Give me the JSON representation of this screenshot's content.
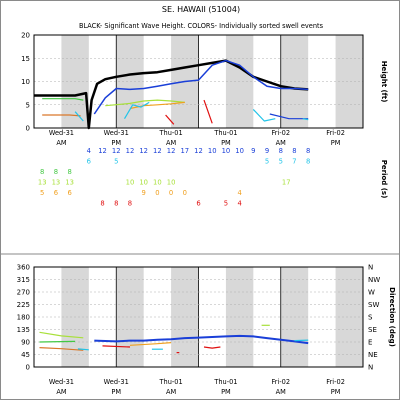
{
  "title": "SE. HAWAII (51004)",
  "subtitle": "BLACK- Significant Wave Height.  COLORS- Individually sorted swell events",
  "colors": {
    "black": "#000000",
    "blue": "#1a3fd8",
    "cyan": "#22c4e8",
    "green": "#43c843",
    "yellowgreen": "#a8e03a",
    "orange": "#f0a020",
    "darkorange": "#d9782a",
    "red": "#e01010",
    "shade": "#d8d8d8"
  },
  "time_ticks": [
    {
      "day": "Wed-31",
      "half": "AM"
    },
    {
      "day": "Wed-31",
      "half": "PM"
    },
    {
      "day": "Thu-01",
      "half": "AM"
    },
    {
      "day": "Thu-01",
      "half": "PM"
    },
    {
      "day": "Fri-02",
      "half": "AM"
    },
    {
      "day": "Fri-02",
      "half": "PM"
    }
  ],
  "chart_data": [
    {
      "type": "line",
      "id": "height",
      "ylabel": "Height (ft)",
      "ylim": [
        0,
        20
      ],
      "yticks": [
        0,
        5,
        10,
        15,
        20
      ],
      "xlim": [
        0,
        12
      ],
      "grid": true,
      "series": [
        {
          "color": "black",
          "width": 2.5,
          "x": [
            0,
            1.5,
            1.9,
            2.0,
            2.1,
            2.3,
            2.6,
            3.0,
            3.5,
            4.0,
            4.5,
            5.0,
            5.5,
            6.0,
            6.5,
            7.0,
            7.5,
            8.0,
            8.5,
            9.0,
            9.5,
            10.0
          ],
          "y": [
            7,
            7,
            7.5,
            0,
            6,
            9.5,
            10.5,
            11,
            11.5,
            11.8,
            12,
            12.5,
            13,
            13.5,
            14,
            14.5,
            13,
            11,
            10,
            9,
            8.5,
            8.3
          ]
        },
        {
          "color": "blue",
          "width": 1.5,
          "x": [
            2.2,
            2.6,
            3.0,
            3.5,
            4.0,
            4.5,
            5.0,
            5.5,
            6.0,
            6.5,
            7.0,
            7.5,
            8.0,
            8.5,
            9.0,
            9.5,
            10.0
          ],
          "y": [
            3,
            6.5,
            8.5,
            8.3,
            8.5,
            9,
            9.5,
            10,
            10.3,
            13.5,
            14.5,
            13.5,
            11,
            9,
            8.5,
            8.5,
            8.3
          ]
        },
        {
          "color": "green",
          "width": 1.2,
          "x": [
            0.3,
            1.5,
            1.8
          ],
          "y": [
            6.3,
            6.3,
            6
          ]
        },
        {
          "color": "darkorange",
          "width": 1.2,
          "x": [
            0.3,
            1.3,
            1.7
          ],
          "y": [
            2.8,
            2.8,
            2.6
          ]
        },
        {
          "color": "yellowgreen",
          "width": 1.2,
          "x": [
            2.6,
            3.5,
            4.0,
            4.5,
            5.0,
            5.5
          ],
          "y": [
            4.8,
            5.3,
            5.8,
            6,
            5.8,
            5.5
          ]
        },
        {
          "color": "orange",
          "width": 1.2,
          "x": [
            3.5,
            4.0,
            4.5,
            5.0,
            5.5
          ],
          "y": [
            4.2,
            4.8,
            5,
            5.2,
            5.5
          ]
        },
        {
          "color": "cyan",
          "width": 1.2,
          "x": [
            3.3,
            3.6,
            3.9,
            4.2
          ],
          "y": [
            2,
            5,
            4.5,
            5.5
          ]
        },
        {
          "color": "cyan",
          "width": 1.2,
          "x": [
            1.5,
            1.8
          ],
          "y": [
            3.5,
            1.5
          ]
        },
        {
          "color": "red",
          "width": 1.2,
          "x": [
            4.8,
            5.1
          ],
          "y": [
            2.8,
            0.8
          ]
        },
        {
          "color": "red",
          "width": 1.2,
          "x": [
            6.2,
            6.5
          ],
          "y": [
            6,
            1
          ]
        },
        {
          "color": "blue",
          "width": 1.2,
          "x": [
            8.6,
            9.3,
            10.0
          ],
          "y": [
            3,
            2,
            2
          ]
        },
        {
          "color": "cyan",
          "width": 1.2,
          "x": [
            8.0,
            8.4,
            8.8
          ],
          "y": [
            4,
            1.5,
            2
          ]
        },
        {
          "color": "cyan",
          "width": 1.2,
          "x": [
            9.8,
            10.0
          ],
          "y": [
            2,
            1.8
          ]
        }
      ]
    },
    {
      "type": "text-rows",
      "id": "period",
      "ylabel": "Period (s)",
      "rows": [
        {
          "color": "blue",
          "items": [
            [
              2.0,
              "4"
            ],
            [
              2.5,
              "12"
            ],
            [
              3.0,
              "12"
            ],
            [
              3.5,
              "12"
            ],
            [
              4.0,
              "12"
            ],
            [
              4.5,
              "12"
            ],
            [
              5.0,
              "12"
            ],
            [
              5.5,
              "17"
            ],
            [
              6.0,
              "12"
            ],
            [
              6.5,
              "10"
            ],
            [
              7.0,
              "10"
            ],
            [
              7.5,
              "10"
            ],
            [
              8.0,
              "9"
            ],
            [
              8.5,
              "9"
            ],
            [
              9.0,
              "8"
            ],
            [
              9.5,
              "8"
            ],
            [
              10.0,
              "8"
            ]
          ]
        },
        {
          "color": "cyan",
          "items": [
            [
              2.0,
              "6"
            ],
            [
              3.0,
              "5"
            ],
            [
              8.5,
              "5"
            ],
            [
              9.0,
              "5"
            ],
            [
              9.5,
              "7"
            ],
            [
              10.0,
              "8"
            ]
          ]
        },
        {
          "color": "green",
          "items": [
            [
              0.3,
              "8"
            ],
            [
              0.8,
              "8"
            ],
            [
              1.3,
              "8"
            ]
          ]
        },
        {
          "color": "yellowgreen",
          "items": [
            [
              0.3,
              "13"
            ],
            [
              0.8,
              "13"
            ],
            [
              1.3,
              "13"
            ],
            [
              3.5,
              "10"
            ],
            [
              4.0,
              "10"
            ],
            [
              4.5,
              "10"
            ],
            [
              5.0,
              "10"
            ],
            [
              9.2,
              "17"
            ]
          ]
        },
        {
          "color": "orange",
          "items": [
            [
              0.3,
              "5"
            ],
            [
              0.8,
              "6"
            ],
            [
              1.3,
              "6"
            ],
            [
              4.0,
              "9"
            ],
            [
              4.5,
              "0"
            ],
            [
              5.0,
              "0"
            ],
            [
              5.5,
              "0"
            ],
            [
              7.5,
              "4"
            ]
          ]
        },
        {
          "color": "red",
          "items": [
            [
              2.5,
              "8"
            ],
            [
              3.0,
              "8"
            ],
            [
              3.5,
              "8"
            ],
            [
              6.0,
              "6"
            ],
            [
              7.0,
              "5"
            ],
            [
              7.5,
              "4"
            ]
          ]
        }
      ]
    },
    {
      "type": "line",
      "id": "direction",
      "ylabel": "Direction (deg)",
      "ylim": [
        0,
        360
      ],
      "yticks": [
        0,
        45,
        90,
        135,
        180,
        225,
        270,
        315,
        360
      ],
      "compass": [
        "N",
        "NE",
        "E",
        "SE",
        "S",
        "SW",
        "W",
        "NW",
        "N"
      ],
      "xlim": [
        0,
        12
      ],
      "grid": true,
      "series": [
        {
          "color": "blue",
          "width": 2,
          "x": [
            2.2,
            3.0,
            3.5,
            4.0,
            4.5,
            5.0,
            5.5,
            6.0,
            6.5,
            7.0,
            7.5,
            8.0,
            8.5,
            9.0,
            9.5,
            10.0
          ],
          "y": [
            95,
            92,
            95,
            95,
            98,
            100,
            104,
            106,
            108,
            110,
            112,
            110,
            104,
            98,
            92,
            86
          ]
        },
        {
          "color": "yellowgreen",
          "width": 1.2,
          "x": [
            0.2,
            1.0,
            1.8
          ],
          "y": [
            125,
            112,
            105
          ]
        },
        {
          "color": "green",
          "width": 1.2,
          "x": [
            0.2,
            1.5
          ],
          "y": [
            90,
            92
          ]
        },
        {
          "color": "darkorange",
          "width": 1.2,
          "x": [
            0.2,
            1.0,
            1.8
          ],
          "y": [
            70,
            66,
            60
          ]
        },
        {
          "color": "red",
          "width": 1.2,
          "x": [
            2.5,
            3.5
          ],
          "y": [
            76,
            72
          ]
        },
        {
          "color": "orange",
          "width": 1.2,
          "x": [
            3.5,
            4.5,
            5.0
          ],
          "y": [
            78,
            84,
            88
          ]
        },
        {
          "color": "cyan",
          "width": 1.2,
          "x": [
            4.3,
            4.7
          ],
          "y": [
            64,
            64
          ]
        },
        {
          "color": "cyan",
          "width": 1.2,
          "x": [
            1.6,
            2.0
          ],
          "y": [
            65,
            62
          ]
        },
        {
          "color": "red",
          "width": 1.2,
          "x": [
            5.2,
            5.3
          ],
          "y": [
            52,
            52
          ]
        },
        {
          "color": "red",
          "width": 1.2,
          "x": [
            6.2,
            6.5,
            6.8
          ],
          "y": [
            72,
            68,
            72
          ]
        },
        {
          "color": "yellowgreen",
          "width": 1.2,
          "x": [
            8.3,
            8.6
          ],
          "y": [
            150,
            150
          ]
        },
        {
          "color": "cyan",
          "width": 1.2,
          "x": [
            9.5,
            10.0
          ],
          "y": [
            95,
            97
          ]
        }
      ]
    }
  ]
}
